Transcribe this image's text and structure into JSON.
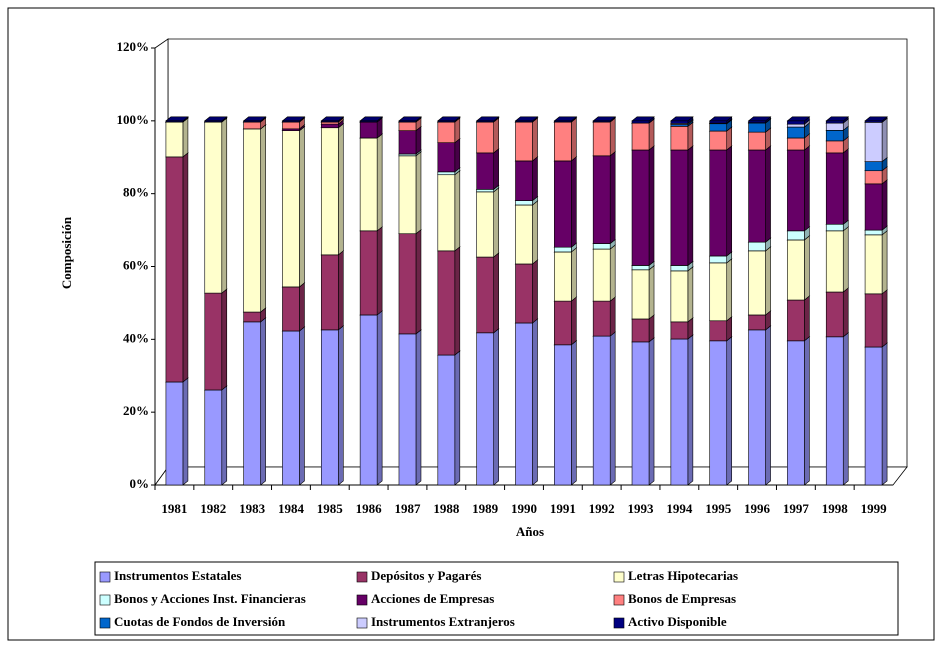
{
  "chart_data": {
    "type": "stacked_bar",
    "x_label": "Años",
    "y_label": "Composición",
    "categories": [
      "1981",
      "1982",
      "1983",
      "1984",
      "1985",
      "1986",
      "1987",
      "1988",
      "1989",
      "1990",
      "1991",
      "1992",
      "1993",
      "1994",
      "1995",
      "1996",
      "1997",
      "1998",
      "1999"
    ],
    "series": [
      {
        "name": "Instrumentos Estatales",
        "color": "#9999ff",
        "values": [
          28.3,
          26.1,
          44.8,
          42.3,
          42.6,
          46.7,
          41.5,
          35.7,
          41.8,
          44.5,
          38.5,
          40.9,
          39.3,
          40.1,
          39.6,
          42.6,
          39.6,
          40.7,
          37.9
        ]
      },
      {
        "name": "Depósitos  y Pagarés",
        "color": "#993366",
        "values": [
          61.8,
          26.6,
          2.7,
          12.1,
          20.6,
          23.1,
          27.5,
          28.6,
          20.8,
          16.2,
          12.0,
          9.6,
          6.3,
          4.7,
          5.5,
          4.1,
          11.2,
          12.3,
          14.6
        ]
      },
      {
        "name": "Letras Hipotecarias",
        "color": "#ffffcc",
        "values": [
          9.6,
          47.0,
          50.3,
          42.9,
          34.9,
          25.5,
          21.4,
          20.9,
          17.9,
          16.2,
          13.5,
          14.3,
          13.5,
          14.0,
          15.9,
          17.6,
          16.5,
          16.8,
          16.2
        ]
      },
      {
        "name": "Bonos y Acciones Inst. Financieras",
        "color": "#ccffff",
        "values": [
          0,
          0,
          0,
          0,
          0,
          0,
          0.5,
          0.8,
          0.7,
          1.2,
          1.3,
          1.5,
          1.2,
          1.5,
          1.9,
          2.4,
          2.5,
          1.8,
          1.3
        ]
      },
      {
        "name": "Acciones de Empresas",
        "color": "#660066",
        "values": [
          0,
          0,
          0,
          0.5,
          1.0,
          4.4,
          6.4,
          8.0,
          10.0,
          10.9,
          23.7,
          24.1,
          31.7,
          31.7,
          29.1,
          25.3,
          22.2,
          19.6,
          12.7
        ]
      },
      {
        "name": "Bonos de Empresas",
        "color": "#ff8080",
        "values": [
          0,
          0,
          1.9,
          1.9,
          0.6,
          0,
          2.4,
          5.7,
          8.5,
          10.7,
          10.7,
          9.3,
          7.4,
          6.5,
          5.2,
          4.9,
          3.3,
          3.3,
          3.6
        ]
      },
      {
        "name": "Cuotas de Fondos de Inversión",
        "color": "#0066cc",
        "values": [
          0,
          0,
          0,
          0,
          0,
          0,
          0,
          0,
          0,
          0,
          0,
          0,
          0,
          0.5,
          2.0,
          2.5,
          3.0,
          2.9,
          2.5
        ]
      },
      {
        "name": "Instrumentos Extranjeros",
        "color": "#ccccff",
        "values": [
          0,
          0,
          0,
          0,
          0,
          0,
          0,
          0,
          0,
          0,
          0,
          0,
          0,
          0.3,
          0.2,
          0.1,
          0.8,
          2.0,
          10.8
        ]
      },
      {
        "name": "Activo Disponible",
        "color": "#000080",
        "values": [
          0.3,
          0.3,
          0.3,
          0.3,
          0.3,
          0.3,
          0.3,
          0.3,
          0.3,
          0.3,
          0.3,
          0.3,
          0.6,
          0.7,
          0.6,
          0.5,
          0.9,
          0.6,
          0.4
        ]
      }
    ],
    "ylim": [
      0,
      120
    ],
    "yticks": [
      {
        "value": 0,
        "label": "0%"
      },
      {
        "value": 20,
        "label": "20%"
      },
      {
        "value": 40,
        "label": "40%"
      },
      {
        "value": 60,
        "label": "60%"
      },
      {
        "value": 80,
        "label": "80%"
      },
      {
        "value": 100,
        "label": "100%"
      },
      {
        "value": 120,
        "label": "120%"
      }
    ],
    "grid": false,
    "legend": "bottom"
  }
}
